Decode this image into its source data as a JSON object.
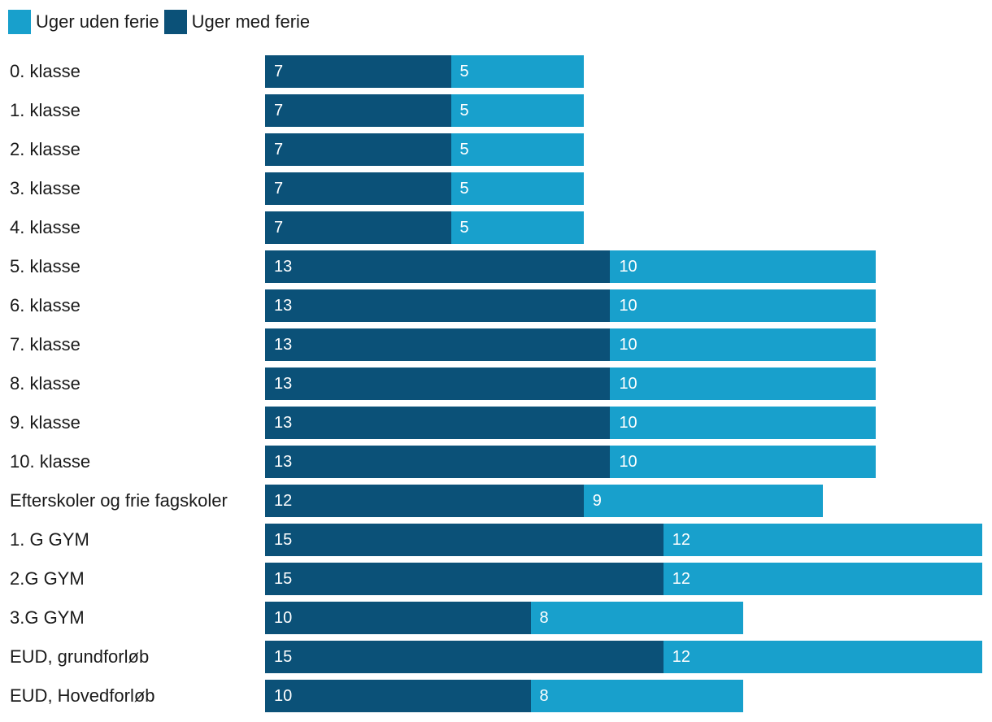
{
  "colors": {
    "med": "#0b5178",
    "uden": "#18a0cc",
    "text": "#1a1a1a"
  },
  "chart_data": {
    "type": "bar",
    "orientation": "horizontal",
    "stacked": true,
    "categories": [
      "0. klasse",
      "1. klasse",
      "2. klasse",
      "3. klasse",
      "4. klasse",
      "5. klasse",
      "6. klasse",
      "7. klasse",
      "8. klasse",
      "9. klasse",
      "10. klasse",
      "Efterskoler og frie fagskoler",
      "1. G GYM",
      "2.G GYM",
      "3.G GYM",
      "EUD, grundforløb",
      "EUD, Hovedforløb"
    ],
    "series": [
      {
        "name": "Uger med ferie",
        "color": "#0b5178",
        "values": [
          7,
          7,
          7,
          7,
          7,
          13,
          13,
          13,
          13,
          13,
          13,
          12,
          15,
          15,
          10,
          15,
          10
        ]
      },
      {
        "name": "Uger uden ferie",
        "color": "#18a0cc",
        "values": [
          5,
          5,
          5,
          5,
          5,
          10,
          10,
          10,
          10,
          10,
          10,
          9,
          12,
          12,
          8,
          12,
          8
        ]
      }
    ],
    "legend": [
      {
        "label": "Uger uden ferie",
        "color": "#18a0cc"
      },
      {
        "label": "Uger med ferie",
        "color": "#0b5178"
      }
    ],
    "legend_position": "top-left",
    "xlim": [
      0,
      27
    ],
    "title": "",
    "xlabel": "",
    "ylabel": "",
    "grid": false
  }
}
